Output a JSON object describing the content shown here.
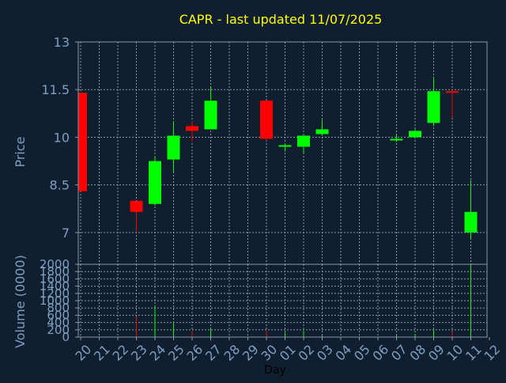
{
  "chart_data": {
    "type": "candlestick",
    "title": "CAPR - last updated 11/07/2025",
    "xlabel": "Day",
    "price_panel": {
      "ylabel": "Price",
      "ylim": [
        6.0,
        13.0
      ],
      "yticks": [
        7,
        8.5,
        10,
        11.5,
        13
      ],
      "ytick_labels": [
        "7",
        "8.5",
        "10",
        "11.5",
        "13"
      ],
      "grid": true
    },
    "volume_panel": {
      "ylabel": "Volume (0000)",
      "ylim": [
        0,
        2000
      ],
      "yticks": [
        0,
        200,
        400,
        600,
        800,
        1000,
        1200,
        1400,
        1600,
        1800,
        2000
      ],
      "ytick_labels": [
        "0",
        "200",
        "400",
        "600",
        "800",
        "1000",
        "1200",
        "1400",
        "1600",
        "1800",
        "2000"
      ],
      "grid": true
    },
    "x_ticks": [
      "20",
      "21",
      "22",
      "23",
      "24",
      "25",
      "26",
      "27",
      "28",
      "29",
      "30",
      "01",
      "02",
      "03",
      "04",
      "05",
      "06",
      "07",
      "08",
      "09",
      "10",
      "11",
      "12"
    ],
    "candles": [
      {
        "x": "20",
        "open": 11.4,
        "close": 8.3,
        "high": 11.4,
        "low": 8.3,
        "volume": 0
      },
      {
        "x": "23",
        "open": 8.0,
        "close": 7.65,
        "high": 8.0,
        "low": 7.0,
        "volume": 560
      },
      {
        "x": "24",
        "open": 7.9,
        "close": 9.25,
        "high": 9.4,
        "low": 7.85,
        "volume": 850
      },
      {
        "x": "25",
        "open": 9.3,
        "close": 10.05,
        "high": 10.5,
        "low": 8.9,
        "volume": 380
      },
      {
        "x": "26",
        "open": 10.35,
        "close": 10.2,
        "high": 10.5,
        "low": 9.85,
        "volume": 170
      },
      {
        "x": "27",
        "open": 10.25,
        "close": 11.15,
        "high": 11.6,
        "low": 10.25,
        "volume": 230
      },
      {
        "x": "30",
        "open": 11.15,
        "close": 9.95,
        "high": 11.15,
        "low": 9.9,
        "volume": 170
      },
      {
        "x": "01",
        "open": 9.7,
        "close": 9.75,
        "high": 9.8,
        "low": 9.55,
        "volume": 120
      },
      {
        "x": "02",
        "open": 9.7,
        "close": 10.05,
        "high": 10.05,
        "low": 9.5,
        "volume": 160
      },
      {
        "x": "03",
        "open": 10.1,
        "close": 10.25,
        "high": 10.55,
        "low": 10.05,
        "volume": 40
      },
      {
        "x": "07",
        "open": 9.9,
        "close": 9.95,
        "high": 10.1,
        "low": 9.85,
        "volume": 40
      },
      {
        "x": "08",
        "open": 10.0,
        "close": 10.2,
        "high": 10.25,
        "low": 9.95,
        "volume": 90
      },
      {
        "x": "09",
        "open": 10.45,
        "close": 11.45,
        "high": 11.85,
        "low": 10.35,
        "volume": 200
      },
      {
        "x": "10",
        "open": 11.45,
        "close": 11.4,
        "high": 11.5,
        "low": 10.6,
        "volume": 150
      },
      {
        "x": "11",
        "open": 7.0,
        "close": 7.65,
        "high": 8.65,
        "low": 6.8,
        "volume": 2000
      }
    ],
    "colors": {
      "background": "#0f1f30",
      "up": "#00ff00",
      "down": "#ff0000",
      "frame": "#8899aa",
      "grid": "#8899aa",
      "label": "#7f9fc0",
      "title": "#ffff00",
      "xlabel": "#000000"
    }
  }
}
